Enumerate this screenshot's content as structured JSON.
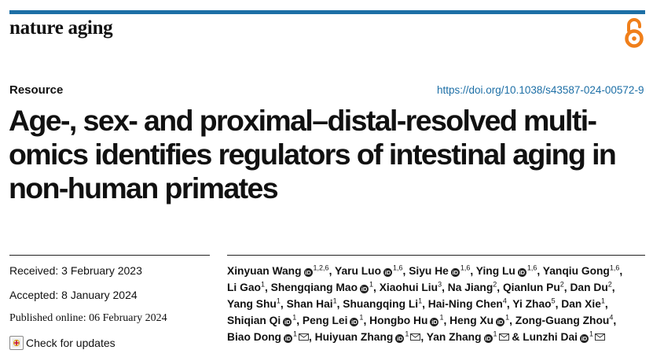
{
  "header": {
    "journal_name": "nature aging",
    "open_access_icon": "open-access-lock-icon",
    "brand_color": "#1d6fa6"
  },
  "article": {
    "type": "Resource",
    "doi": "https://doi.org/10.1038/s43587-024-00572-9",
    "title": "Age-, sex- and proximal–distal-resolved multi-omics identifies regulators of intestinal aging in non-human primates"
  },
  "meta": {
    "received": "Received: 3 February 2023",
    "accepted": "Accepted: 8 January 2024",
    "published": "Published online: 06 February 2024",
    "check_updates": "Check for updates"
  },
  "authors": [
    {
      "name": "Xinyuan Wang",
      "orcid": true,
      "aff": "1,2,6",
      "corr": false
    },
    {
      "name": "Yaru Luo",
      "orcid": true,
      "aff": "1,6",
      "corr": false
    },
    {
      "name": "Siyu He",
      "orcid": true,
      "aff": "1,6",
      "corr": false
    },
    {
      "name": "Ying Lu",
      "orcid": true,
      "aff": "1,6",
      "corr": false
    },
    {
      "name": "Yanqiu Gong",
      "orcid": false,
      "aff": "1,6",
      "corr": false
    },
    {
      "name": "Li Gao",
      "orcid": false,
      "aff": "1",
      "corr": false
    },
    {
      "name": "Shengqiang Mao",
      "orcid": true,
      "aff": "1",
      "corr": false
    },
    {
      "name": "Xiaohui Liu",
      "orcid": false,
      "aff": "3",
      "corr": false
    },
    {
      "name": "Na Jiang",
      "orcid": false,
      "aff": "2",
      "corr": false
    },
    {
      "name": "Qianlun Pu",
      "orcid": false,
      "aff": "2",
      "corr": false
    },
    {
      "name": "Dan Du",
      "orcid": false,
      "aff": "2",
      "corr": false
    },
    {
      "name": "Yang Shu",
      "orcid": false,
      "aff": "1",
      "corr": false
    },
    {
      "name": "Shan Hai",
      "orcid": false,
      "aff": "1",
      "corr": false
    },
    {
      "name": "Shuangqing Li",
      "orcid": false,
      "aff": "1",
      "corr": false
    },
    {
      "name": "Hai-Ning Chen",
      "orcid": false,
      "aff": "4",
      "corr": false
    },
    {
      "name": "Yi Zhao",
      "orcid": false,
      "aff": "5",
      "corr": false
    },
    {
      "name": "Dan Xie",
      "orcid": false,
      "aff": "1",
      "corr": false
    },
    {
      "name": "Shiqian Qi",
      "orcid": true,
      "aff": "1",
      "corr": false
    },
    {
      "name": "Peng Lei",
      "orcid": true,
      "aff": "1",
      "corr": false
    },
    {
      "name": "Hongbo Hu",
      "orcid": true,
      "aff": "1",
      "corr": false
    },
    {
      "name": "Heng Xu",
      "orcid": true,
      "aff": "1",
      "corr": false
    },
    {
      "name": "Zong-Guang Zhou",
      "orcid": false,
      "aff": "4",
      "corr": false
    },
    {
      "name": "Biao Dong",
      "orcid": true,
      "aff": "1",
      "corr": true
    },
    {
      "name": "Huiyuan Zhang",
      "orcid": true,
      "aff": "1",
      "corr": true
    },
    {
      "name": "Yan Zhang",
      "orcid": true,
      "aff": "1",
      "corr": true
    },
    {
      "name": "Lunzhi Dai",
      "orcid": true,
      "aff": "1",
      "corr": true
    }
  ]
}
